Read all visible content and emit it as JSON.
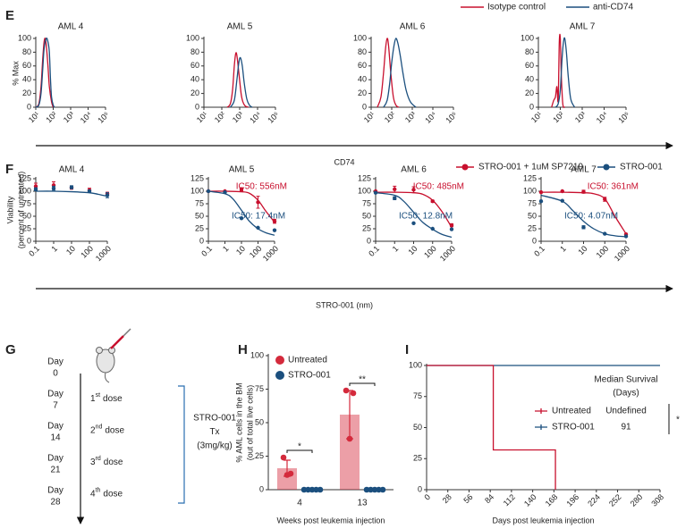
{
  "chart_data": [
    {
      "type": "line",
      "panel": "E",
      "ylabel": "% Max",
      "xlabel": "CD74",
      "xscale": "log",
      "xlim": [
        10,
        100000
      ],
      "xticks": [
        {
          "value": 10,
          "label": "10¹"
        },
        {
          "value": 100,
          "label": "10²"
        },
        {
          "value": 1000,
          "label": "10³"
        },
        {
          "value": 10000,
          "label": "10⁴"
        },
        {
          "value": 100000,
          "label": "10⁵"
        }
      ],
      "ylim": [
        0,
        100
      ],
      "yticks": [
        0,
        20,
        40,
        60,
        80,
        100
      ],
      "legend": [
        {
          "name": "Isotype control",
          "color": "#c8102e"
        },
        {
          "name": "anti-CD74",
          "color": "#1b4f7e"
        }
      ],
      "plots": [
        {
          "title": "AML 4",
          "series": [
            {
              "x": [
                10,
                15,
                20,
                25,
                30,
                35,
                40,
                50,
                60,
                80,
                100
              ],
              "values": [
                0,
                5,
                30,
                70,
                95,
                100,
                90,
                60,
                30,
                8,
                0
              ]
            },
            {
              "x": [
                10,
                15,
                20,
                25,
                30,
                40,
                50,
                60,
                70,
                80,
                100,
                120
              ],
              "values": [
                0,
                3,
                20,
                55,
                85,
                100,
                95,
                80,
                40,
                15,
                3,
                0
              ]
            }
          ]
        },
        {
          "title": "AML 5",
          "series": [
            {
              "x": [
                200,
                300,
                400,
                500,
                600,
                700,
                900,
                1200,
                1500,
                2000,
                3000
              ],
              "values": [
                0,
                5,
                25,
                60,
                78,
                75,
                50,
                20,
                8,
                2,
                0
              ]
            },
            {
              "x": [
                300,
                500,
                700,
                900,
                1100,
                1400,
                1800,
                2500,
                3500,
                5000
              ],
              "values": [
                0,
                10,
                40,
                65,
                72,
                60,
                35,
                12,
                3,
                0
              ]
            }
          ]
        },
        {
          "title": "AML 6",
          "series": [
            {
              "x": [
                20,
                30,
                40,
                50,
                60,
                70,
                90,
                120,
                160,
                220
              ],
              "values": [
                0,
                15,
                50,
                85,
                100,
                90,
                50,
                15,
                3,
                0
              ]
            },
            {
              "x": [
                40,
                60,
                80,
                100,
                130,
                160,
                200,
                260,
                350,
                500,
                800,
                1500
              ],
              "values": [
                0,
                10,
                35,
                65,
                90,
                100,
                93,
                75,
                50,
                25,
                8,
                0
              ]
            }
          ]
        },
        {
          "title": "AML 7",
          "series": [
            {
              "x": [
                40,
                50,
                60,
                70,
                80,
                90,
                100,
                110,
                130,
                160
              ],
              "values": [
                0,
                10,
                15,
                30,
                10,
                95,
                100,
                50,
                5,
                0
              ]
            },
            {
              "x": [
                60,
                80,
                100,
                120,
                140,
                160,
                190,
                230,
                300,
                450
              ],
              "values": [
                0,
                5,
                25,
                70,
                95,
                100,
                80,
                45,
                12,
                0
              ]
            }
          ]
        }
      ]
    },
    {
      "type": "scatter",
      "panel": "F",
      "ylabel": [
        "Viability",
        "(percent of untreated)"
      ],
      "xlabel": "STRO-001 (nm)",
      "xscale": "log",
      "xlim": [
        0.1,
        1000
      ],
      "xticks": [
        0.1,
        1,
        10,
        100,
        1000
      ],
      "ylim": [
        0,
        125
      ],
      "yticks": [
        0,
        25,
        50,
        75,
        100,
        125
      ],
      "legend": [
        {
          "name": "STRO-001 + 1uM SP7219",
          "color": "#c8102e"
        },
        {
          "name": "STRO-001",
          "color": "#1b4f7e"
        }
      ],
      "plots": [
        {
          "title": "AML 4",
          "series": [
            {
              "x": [
                0.1,
                1,
                10,
                100,
                1000
              ],
              "values": [
                110,
                112,
                107,
                102,
                95
              ],
              "errors": [
                6,
                7,
                3,
                4,
                3
              ]
            },
            {
              "x": [
                0.1,
                1,
                10,
                100,
                1000
              ],
              "values": [
                104,
                106,
                108,
                100,
                92
              ],
              "errors": [
                3,
                4,
                3,
                2,
                5
              ],
              "fit": {
                "x": [
                  0.1,
                  1,
                  10,
                  100,
                  300,
                  1000
                ],
                "values": [
                  100,
                  100,
                  99,
                  97,
                  94,
                  90
                ]
              }
            }
          ]
        },
        {
          "title": "AML 5",
          "series": [
            {
              "x": [
                0.1,
                1,
                10,
                100,
                1000
              ],
              "values": [
                100,
                100,
                104,
                78,
                40
              ],
              "errors": [
                0,
                0,
                3,
                12,
                4
              ],
              "label": "IC50: 556nM",
              "fit": {
                "x": [
                  0.1,
                  1,
                  10,
                  30,
                  100,
                  300,
                  1000
                ],
                "values": [
                  100,
                  100,
                  99,
                  96,
                  82,
                  60,
                  38
                ]
              }
            },
            {
              "x": [
                0.1,
                1,
                10,
                100,
                1000
              ],
              "values": [
                100,
                98,
                46,
                27,
                22
              ],
              "errors": [
                0,
                0,
                0,
                0,
                0
              ],
              "label": "IC50: 17.4nM",
              "fit": {
                "x": [
                  0.1,
                  1,
                  3,
                  10,
                  30,
                  100,
                  300,
                  1000
                ],
                "values": [
                  100,
                  95,
                  85,
                  62,
                  40,
                  25,
                  17,
                  12
                ]
              }
            }
          ]
        },
        {
          "title": "AML 6",
          "series": [
            {
              "x": [
                0.1,
                1,
                10,
                100,
                1000
              ],
              "values": [
                100,
                104,
                103,
                80,
                32
              ],
              "errors": [
                0,
                6,
                6,
                2,
                3
              ],
              "label": "IC50: 485nM",
              "fit": {
                "x": [
                  0.1,
                  1,
                  10,
                  30,
                  100,
                  300,
                  1000
                ],
                "values": [
                  98,
                  98,
                  97,
                  94,
                  82,
                  60,
                  28
                ]
              }
            },
            {
              "x": [
                0.1,
                1,
                10,
                100,
                1000
              ],
              "values": [
                97,
                86,
                36,
                25,
                24
              ],
              "errors": [
                0,
                3,
                0,
                0,
                0
              ],
              "label": "IC50: 12.8nM",
              "fit": {
                "x": [
                  0.1,
                  1,
                  3,
                  10,
                  30,
                  100,
                  300,
                  1000
                ],
                "values": [
                  97,
                  92,
                  80,
                  58,
                  38,
                  24,
                  14,
                  8
                ]
              }
            }
          ]
        },
        {
          "title": "AML 7",
          "series": [
            {
              "x": [
                0.1,
                1,
                10,
                100,
                1000
              ],
              "values": [
                98,
                100,
                99,
                84,
                14
              ],
              "errors": [
                0,
                1,
                3,
                4,
                0
              ],
              "label": "IC50: 361nM",
              "fit": {
                "x": [
                  0.1,
                  1,
                  10,
                  30,
                  100,
                  300,
                  1000
                ],
                "values": [
                  98,
                  98,
                  97,
                  95,
                  85,
                  50,
                  15
                ]
              }
            },
            {
              "x": [
                0.1,
                1,
                10,
                100,
                1000
              ],
              "values": [
                80,
                81,
                28,
                15,
                10
              ],
              "errors": [
                0,
                0,
                3,
                0,
                0
              ],
              "label": "IC50: 4.07nM",
              "fit": {
                "x": [
                  0.1,
                  1,
                  3,
                  10,
                  30,
                  100,
                  300,
                  1000
                ],
                "values": [
                  92,
                  80,
                  62,
                  40,
                  25,
                  15,
                  11,
                  9
                ]
              }
            }
          ]
        }
      ]
    },
    {
      "type": "bar",
      "panel": "H",
      "categories": [
        "4",
        "13"
      ],
      "xlabel": "Weeks post leukemia injection",
      "ylabel": [
        "% AML cells in the BM",
        "(out of total live cells)"
      ],
      "ylim": [
        0,
        100
      ],
      "yticks": [
        0,
        25,
        50,
        75,
        100
      ],
      "series": [
        {
          "name": "Untreated",
          "color": "#d42a3c",
          "values": [
            16,
            56
          ],
          "errors": [
            6,
            18
          ],
          "points": [
            [
              24,
              12,
              11
            ],
            [
              74,
              72,
              38
            ]
          ]
        },
        {
          "name": "STRO-001",
          "color": "#1b4f7e",
          "values": [
            0,
            0
          ],
          "points": [
            [
              0,
              0,
              0,
              0,
              0
            ],
            [
              0,
              0,
              0,
              0,
              0
            ]
          ]
        }
      ],
      "significance": [
        "*",
        "**"
      ]
    },
    {
      "type": "step",
      "panel": "I",
      "xlabel": "Days post leukemia injection",
      "xlim": [
        0,
        308
      ],
      "xticks": [
        0,
        28,
        56,
        84,
        112,
        140,
        168,
        196,
        224,
        252,
        280,
        308
      ],
      "ylim": [
        0,
        100
      ],
      "yticks": [
        0,
        25,
        50,
        75,
        100
      ],
      "series": [
        {
          "name": "Untreated",
          "color": "#c8102e",
          "x": [
            0,
            88,
            170
          ],
          "values": [
            100,
            32,
            0
          ]
        },
        {
          "name": "STRO-001",
          "color": "#1b4f7e",
          "x": [
            0,
            308
          ],
          "values": [
            100,
            100
          ]
        }
      ],
      "table": {
        "title": [
          "Median Survival",
          "(Days)"
        ],
        "values": [
          "Undefined",
          91
        ]
      },
      "significance": "*"
    }
  ],
  "diagram": {
    "panel": "G",
    "days": [
      [
        "Day",
        "0"
      ],
      [
        "Day",
        "7"
      ],
      [
        "Day",
        "14"
      ],
      [
        "Day",
        "21"
      ],
      [
        "Day",
        "28"
      ]
    ],
    "doses": [
      {
        "n": "1",
        "sup": "st",
        "word": "dose"
      },
      {
        "n": "2",
        "sup": "nd",
        "word": "dose"
      },
      {
        "n": "3",
        "sup": "rd",
        "word": "dose"
      },
      {
        "n": "4",
        "sup": "th",
        "word": "dose"
      }
    ],
    "treatment": [
      "STRO-001",
      "Tx",
      "(3mg/kg)"
    ]
  }
}
